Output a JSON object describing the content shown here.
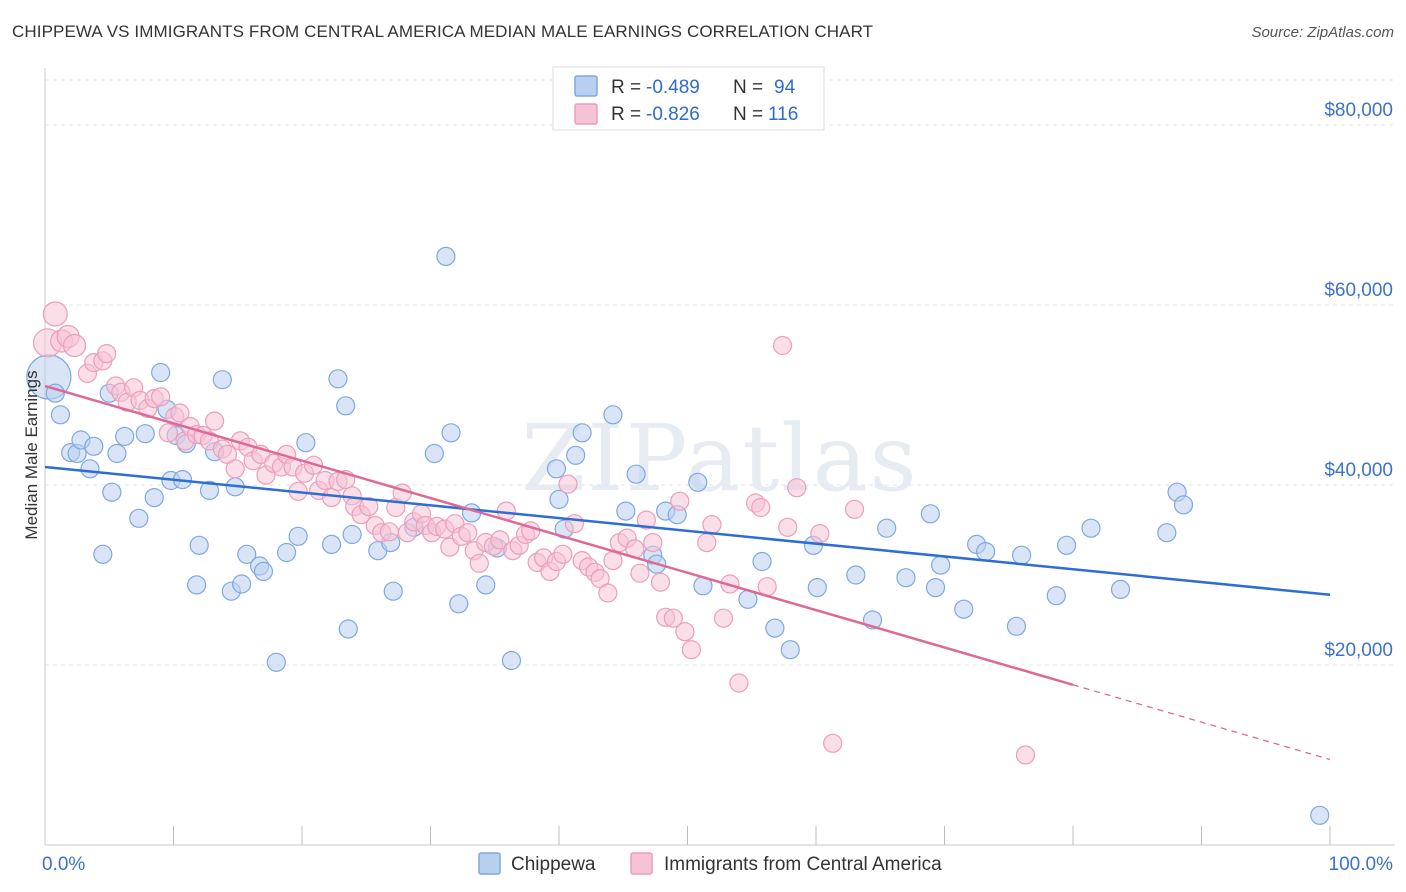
{
  "title": "CHIPPEWA VS IMMIGRANTS FROM CENTRAL AMERICA MEDIAN MALE EARNINGS CORRELATION CHART",
  "source": "Source: ZipAtlas.com",
  "watermark": "ZIPatlas",
  "chart_data": {
    "type": "scatter",
    "ylabel": "Median Male Earnings",
    "xlim": [
      0,
      100
    ],
    "ylim": [
      0,
      85000
    ],
    "x_tick_labels": [
      "0.0%",
      "100.0%"
    ],
    "y_ticks": [
      20000,
      40000,
      60000,
      80000
    ],
    "y_tick_labels": [
      "$20,000",
      "$40,000",
      "$60,000",
      "$80,000"
    ],
    "grid": true,
    "legend_top": {
      "placement": "top-center",
      "rows": [
        {
          "r_label": "R = ",
          "r_value": "-0.489",
          "n_label": "N = ",
          "n_value": "94"
        },
        {
          "r_label": "R = ",
          "r_value": "-0.826",
          "n_label": "N = ",
          "n_value": "116"
        }
      ]
    },
    "series": [
      {
        "name": "Chippewa",
        "color": "#7fa8e0",
        "fill": "#b9cff0",
        "line_color": "#2d6fd0",
        "trend": {
          "x0": 0,
          "y0": 42000,
          "x1": 100,
          "y1": 27800
        },
        "points": [
          [
            0.3,
            52000,
            22
          ],
          [
            0.8,
            50200,
            9
          ],
          [
            1.2,
            47800,
            9
          ],
          [
            2,
            43600,
            9
          ],
          [
            2.5,
            43500,
            9
          ],
          [
            2.8,
            45000,
            9
          ],
          [
            3.5,
            41800,
            9
          ],
          [
            3.8,
            44300,
            9
          ],
          [
            4.5,
            32300,
            9
          ],
          [
            5,
            50200,
            9
          ],
          [
            5.2,
            39200,
            9
          ],
          [
            5.6,
            43500,
            9
          ],
          [
            6.2,
            45400,
            9
          ],
          [
            7.3,
            36300,
            9
          ],
          [
            7.8,
            45700,
            9
          ],
          [
            8.5,
            38600,
            9
          ],
          [
            9,
            52500,
            9
          ],
          [
            9.5,
            48400,
            9
          ],
          [
            9.8,
            40500,
            9
          ],
          [
            10.2,
            45500,
            9
          ],
          [
            10.7,
            40600,
            9
          ],
          [
            11,
            44600,
            9
          ],
          [
            11.8,
            28900,
            9
          ],
          [
            12,
            33300,
            9
          ],
          [
            12.8,
            39400,
            9
          ],
          [
            13.2,
            43700,
            9
          ],
          [
            13.8,
            51700,
            9
          ],
          [
            14.5,
            28200,
            9
          ],
          [
            14.8,
            39800,
            9
          ],
          [
            15.3,
            29000,
            9
          ],
          [
            15.7,
            32300,
            9
          ],
          [
            16.7,
            31000,
            9
          ],
          [
            17,
            30400,
            9
          ],
          [
            18,
            20300,
            9
          ],
          [
            18.8,
            32500,
            9
          ],
          [
            19.7,
            34300,
            9
          ],
          [
            20.3,
            44700,
            9
          ],
          [
            22.3,
            33400,
            9
          ],
          [
            22.8,
            51800,
            9
          ],
          [
            23.4,
            48800,
            9
          ],
          [
            23.6,
            24000,
            9
          ],
          [
            23.9,
            34500,
            9
          ],
          [
            25.9,
            32700,
            9
          ],
          [
            26.9,
            33600,
            9
          ],
          [
            27.1,
            28200,
            9
          ],
          [
            28.7,
            35300,
            9
          ],
          [
            30.3,
            43500,
            9
          ],
          [
            31.2,
            65400,
            9
          ],
          [
            31.6,
            45800,
            9
          ],
          [
            32.2,
            26800,
            9
          ],
          [
            33.2,
            36900,
            9
          ],
          [
            34.3,
            28900,
            9
          ],
          [
            35.2,
            33000,
            9
          ],
          [
            36.3,
            20500,
            9
          ],
          [
            39.8,
            41800,
            9
          ],
          [
            40,
            38400,
            9
          ],
          [
            40.4,
            35100,
            9
          ],
          [
            41.3,
            43300,
            9
          ],
          [
            41.8,
            45800,
            9
          ],
          [
            44.2,
            47800,
            9
          ],
          [
            45.2,
            37100,
            9
          ],
          [
            46,
            41200,
            9
          ],
          [
            47.3,
            32200,
            9
          ],
          [
            47.6,
            31200,
            9
          ],
          [
            48.3,
            37100,
            9
          ],
          [
            49.2,
            36700,
            9
          ],
          [
            50.8,
            40300,
            9
          ],
          [
            51.2,
            28800,
            9
          ],
          [
            54.7,
            27300,
            9
          ],
          [
            55.8,
            31500,
            9
          ],
          [
            56.8,
            24100,
            9
          ],
          [
            58,
            21700,
            9
          ],
          [
            59.8,
            33300,
            9
          ],
          [
            60.1,
            28600,
            9
          ],
          [
            63.1,
            30000,
            9
          ],
          [
            64.4,
            25000,
            9
          ],
          [
            65.5,
            35200,
            9
          ],
          [
            67,
            29700,
            9
          ],
          [
            68.9,
            36800,
            9
          ],
          [
            69.3,
            28600,
            9
          ],
          [
            69.7,
            31100,
            9
          ],
          [
            71.5,
            26200,
            9
          ],
          [
            72.5,
            33400,
            9
          ],
          [
            73.2,
            32600,
            9
          ],
          [
            75.6,
            24300,
            9
          ],
          [
            76,
            32200,
            9
          ],
          [
            78.7,
            27700,
            9
          ],
          [
            79.5,
            33300,
            9
          ],
          [
            81.4,
            35200,
            9
          ],
          [
            83.7,
            28400,
            9
          ],
          [
            87.3,
            34700,
            9
          ],
          [
            88.1,
            39200,
            9
          ],
          [
            88.6,
            37800,
            9
          ],
          [
            99.2,
            3300,
            9
          ]
        ]
      },
      {
        "name": "Immigrants from Central America",
        "color": "#ec9ebb",
        "fill": "#f6c3d6",
        "line_color": "#de6996",
        "trend": {
          "x0": 0,
          "y0": 51000,
          "x1": 80,
          "y1": 17800,
          "dash_x1": 100,
          "dash_y1": 9500
        },
        "points": [
          [
            0.2,
            55800,
            14
          ],
          [
            0.8,
            59000,
            12
          ],
          [
            1.3,
            56000,
            11
          ],
          [
            1.8,
            56500,
            11
          ],
          [
            2.3,
            55500,
            11
          ],
          [
            3.3,
            52400,
            9
          ],
          [
            3.8,
            53600,
            9
          ],
          [
            4.5,
            53800,
            9
          ],
          [
            4.8,
            54600,
            9
          ],
          [
            5.5,
            51000,
            9
          ],
          [
            5.9,
            50300,
            9
          ],
          [
            6.4,
            49200,
            9
          ],
          [
            6.9,
            50800,
            9
          ],
          [
            7.4,
            49400,
            9
          ],
          [
            8,
            48500,
            9
          ],
          [
            8.5,
            49600,
            9
          ],
          [
            9,
            49800,
            9
          ],
          [
            9.6,
            45800,
            9
          ],
          [
            10.1,
            47600,
            9
          ],
          [
            10.5,
            48000,
            9
          ],
          [
            10.9,
            44900,
            9
          ],
          [
            11.3,
            46500,
            9
          ],
          [
            11.8,
            45600,
            9
          ],
          [
            12.3,
            45500,
            9
          ],
          [
            12.8,
            44900,
            9
          ],
          [
            13.2,
            47100,
            9
          ],
          [
            13.8,
            44000,
            9
          ],
          [
            14.2,
            43400,
            9
          ],
          [
            14.8,
            41800,
            9
          ],
          [
            15.2,
            44900,
            9
          ],
          [
            15.8,
            44200,
            9
          ],
          [
            16.2,
            42700,
            9
          ],
          [
            16.8,
            43400,
            9
          ],
          [
            17.2,
            41100,
            9
          ],
          [
            17.8,
            42400,
            9
          ],
          [
            18.4,
            42000,
            9
          ],
          [
            18.8,
            43400,
            9
          ],
          [
            19.3,
            42000,
            9
          ],
          [
            19.7,
            39300,
            9
          ],
          [
            20.2,
            41300,
            9
          ],
          [
            20.9,
            42200,
            9
          ],
          [
            21.3,
            39400,
            9
          ],
          [
            21.8,
            40500,
            9
          ],
          [
            22.3,
            38600,
            9
          ],
          [
            22.8,
            40400,
            9
          ],
          [
            23.4,
            40600,
            9
          ],
          [
            23.9,
            38800,
            9
          ],
          [
            24.1,
            37600,
            9
          ],
          [
            24.6,
            36700,
            9
          ],
          [
            25.2,
            37600,
            9
          ],
          [
            25.7,
            35500,
            9
          ],
          [
            26.2,
            34700,
            9
          ],
          [
            26.8,
            34800,
            9
          ],
          [
            27.3,
            37500,
            9
          ],
          [
            27.8,
            39100,
            9
          ],
          [
            28.2,
            34700,
            9
          ],
          [
            28.7,
            35900,
            9
          ],
          [
            29.3,
            36800,
            9
          ],
          [
            29.6,
            35500,
            9
          ],
          [
            30.1,
            34700,
            9
          ],
          [
            30.5,
            35400,
            9
          ],
          [
            31.1,
            35100,
            9
          ],
          [
            31.5,
            33100,
            9
          ],
          [
            31.9,
            35700,
            9
          ],
          [
            32.4,
            34300,
            9
          ],
          [
            32.9,
            34700,
            9
          ],
          [
            33.4,
            32700,
            9
          ],
          [
            33.8,
            31300,
            9
          ],
          [
            34.3,
            33600,
            9
          ],
          [
            34.9,
            33200,
            9
          ],
          [
            35.4,
            33900,
            9
          ],
          [
            35.9,
            37100,
            9
          ],
          [
            36.4,
            32700,
            9
          ],
          [
            36.9,
            33300,
            9
          ],
          [
            37.4,
            34500,
            9
          ],
          [
            37.8,
            34900,
            9
          ],
          [
            38.3,
            31400,
            9
          ],
          [
            38.8,
            31900,
            9
          ],
          [
            39.3,
            30400,
            9
          ],
          [
            39.8,
            31500,
            9
          ],
          [
            40.3,
            32300,
            9
          ],
          [
            40.7,
            40100,
            9
          ],
          [
            41.2,
            35700,
            9
          ],
          [
            41.8,
            31600,
            9
          ],
          [
            42.3,
            30900,
            9
          ],
          [
            42.8,
            30300,
            9
          ],
          [
            43.2,
            29600,
            9
          ],
          [
            43.8,
            28000,
            9
          ],
          [
            44.2,
            31600,
            9
          ],
          [
            44.7,
            33600,
            9
          ],
          [
            45.3,
            34100,
            9
          ],
          [
            45.9,
            32900,
            9
          ],
          [
            46.3,
            30200,
            9
          ],
          [
            46.8,
            36100,
            9
          ],
          [
            47.3,
            33600,
            9
          ],
          [
            47.9,
            29200,
            9
          ],
          [
            48.3,
            25300,
            9
          ],
          [
            48.9,
            25200,
            9
          ],
          [
            49.4,
            38200,
            9
          ],
          [
            49.8,
            23700,
            9
          ],
          [
            50.3,
            21700,
            9
          ],
          [
            51.5,
            33600,
            9
          ],
          [
            51.9,
            35600,
            9
          ],
          [
            52.8,
            25200,
            9
          ],
          [
            53.3,
            29000,
            9
          ],
          [
            54,
            18000,
            9
          ],
          [
            55.3,
            38000,
            9
          ],
          [
            55.7,
            37500,
            9
          ],
          [
            56.2,
            28700,
            9
          ],
          [
            57.4,
            55500,
            9
          ],
          [
            57.8,
            35300,
            9
          ],
          [
            58.5,
            39700,
            9
          ],
          [
            60.3,
            34600,
            9
          ],
          [
            61.3,
            11300,
            9
          ],
          [
            63,
            37300,
            9
          ],
          [
            76.3,
            10000,
            9
          ]
        ]
      }
    ]
  }
}
